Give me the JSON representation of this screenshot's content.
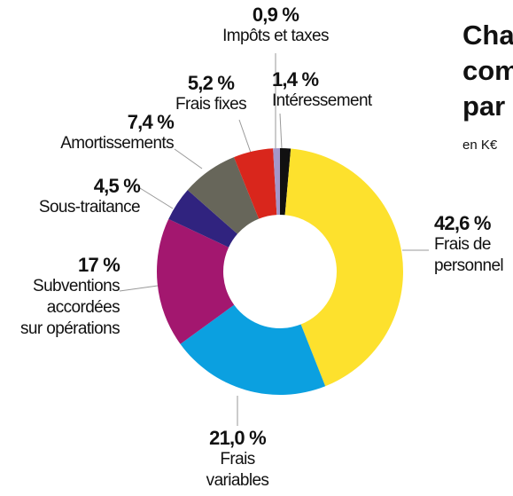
{
  "chart_data": {
    "type": "donut",
    "title_lines": [
      "Cha",
      "com",
      "par"
    ],
    "subtitle": "en K€",
    "categories": [
      "Intéressement",
      "Frais de\npersonnel",
      "Frais\nvariables",
      "Subventions\naccordées\nsur opérations",
      "Sous-traitance",
      "Amortissements",
      "Frais fixes",
      "Impôts et taxes"
    ],
    "values": [
      1.4,
      42.6,
      21.0,
      17,
      4.5,
      7.4,
      5.2,
      0.9
    ],
    "value_labels": [
      "1,4 %",
      "42,6 %",
      "21,0 %",
      "17 %",
      "4,5 %",
      "7,4 %",
      "5,2 %",
      "0,9 %"
    ],
    "colors": [
      "#111111",
      "#fde12d",
      "#0ba0e0",
      "#a3176f",
      "#30237f",
      "#67665a",
      "#d9261c",
      "#a497c9"
    ]
  }
}
